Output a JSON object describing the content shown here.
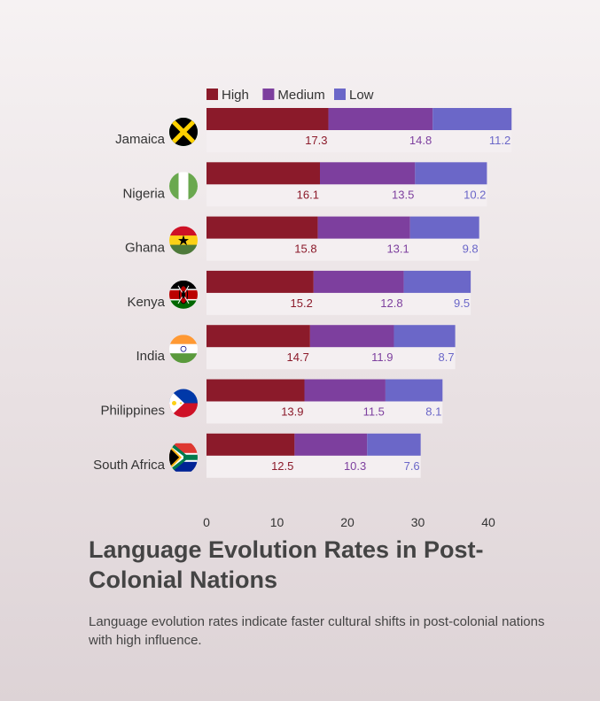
{
  "chart_data": {
    "type": "bar",
    "orientation": "horizontal",
    "stacked": true,
    "title": "Language Evolution Rates in Post-Colonial Nations",
    "subtitle": "Language evolution rates indicate faster cultural shifts in post-colonial nations with high influence.",
    "categories": [
      "Jamaica",
      "Nigeria",
      "Ghana",
      "Kenya",
      "India",
      "Philippines",
      "South Africa"
    ],
    "series": [
      {
        "name": "High",
        "color": "#8b1a2a",
        "values": [
          17.3,
          16.1,
          15.8,
          15.2,
          14.7,
          13.9,
          12.5
        ]
      },
      {
        "name": "Medium",
        "color": "#7d3f9e",
        "values": [
          14.8,
          13.5,
          13.1,
          12.8,
          11.9,
          11.5,
          10.3
        ]
      },
      {
        "name": "Low",
        "color": "#6b67c8",
        "values": [
          11.2,
          10.2,
          9.8,
          9.5,
          8.7,
          8.1,
          7.6
        ]
      }
    ],
    "xlim": [
      0,
      43
    ],
    "x_ticks": [
      0,
      10,
      20,
      30,
      40
    ],
    "legend_position": "top-left",
    "grid": false,
    "flags": [
      "jamaica-flag-icon",
      "nigeria-flag-icon",
      "ghana-flag-icon",
      "kenya-flag-icon",
      "india-flag-icon",
      "philippines-flag-icon",
      "south-africa-flag-icon"
    ]
  }
}
